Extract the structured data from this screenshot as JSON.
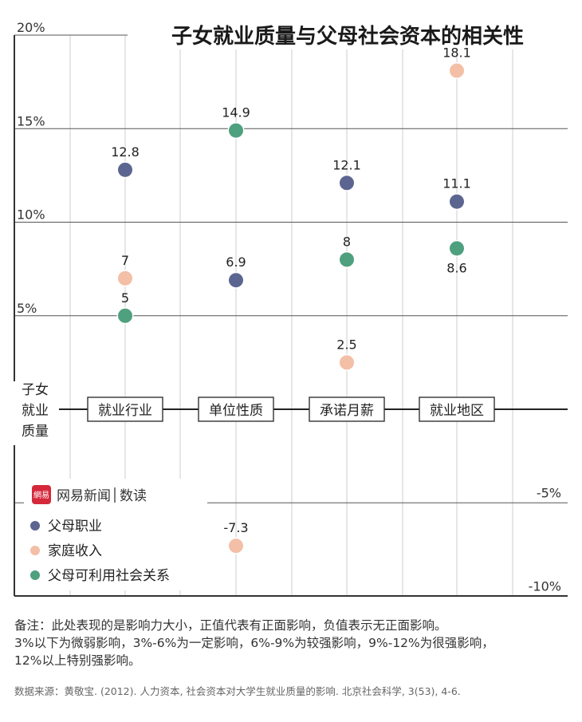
{
  "chart_data": {
    "type": "scatter",
    "title": "子女就业质量与父母社会资本的相关性",
    "ylabel": "子女就业质量",
    "categories": [
      "就业行业",
      "单位性质",
      "承诺月薪",
      "就业地区"
    ],
    "ylim": [
      -10,
      20
    ],
    "ytick_labels": [
      {
        "value": 20,
        "label": "20%"
      },
      {
        "value": 15,
        "label": "15%"
      },
      {
        "value": 10,
        "label": "10%"
      },
      {
        "value": 5,
        "label": "5%"
      },
      {
        "value": -5,
        "label": "-5%"
      },
      {
        "value": -10,
        "label": "-10%"
      }
    ],
    "series": [
      {
        "name": "父母职业",
        "color": "#5b6590",
        "values": [
          12.8,
          6.9,
          12.1,
          11.1
        ],
        "labels": [
          "12.8",
          "6.9",
          "12.1",
          "11.1"
        ],
        "label_pos": [
          "above",
          "above",
          "above",
          "above"
        ]
      },
      {
        "name": "家庭收入",
        "color": "#f3bfa6",
        "values": [
          7,
          -7.3,
          2.5,
          18.1
        ],
        "labels": [
          "7",
          "-7.3",
          "2.5",
          "18.1"
        ],
        "label_pos": [
          "above",
          "above",
          "above",
          "above"
        ]
      },
      {
        "name": "父母可利用社会关系",
        "color": "#4fa07e",
        "values": [
          5,
          14.9,
          8,
          8.6
        ],
        "labels": [
          "5",
          "14.9",
          "8",
          "8.6"
        ],
        "label_pos": [
          "above",
          "above",
          "above",
          "below"
        ]
      }
    ],
    "legend": {
      "position": "bottom-left"
    },
    "brand": {
      "name": "网易新闻",
      "sub": "数读",
      "logo_text": "網易"
    }
  },
  "footnote": {
    "lines": [
      "备注：此处表现的是影响力大小，正值代表有正面影响，负值表示无正面影响。",
      "3%以下为微弱影响，3%-6%为一定影响，6%-9%为较强影响，9%-12%为很强影响，",
      "12%以上特别强影响。"
    ]
  },
  "source": "数据来源：黄敬宝. (2012). 人力资本, 社会资本对大学生就业质量的影响. 北京社会科学, 3(53), 4-6."
}
